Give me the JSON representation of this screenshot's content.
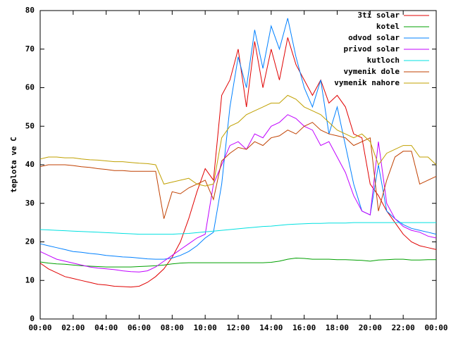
{
  "chart_data": {
    "type": "line",
    "y_label": "teplota ve C",
    "x": [
      0,
      0.5,
      1,
      1.5,
      2,
      2.5,
      3,
      3.5,
      4,
      4.5,
      5,
      5.5,
      6,
      6.5,
      7,
      7.5,
      8,
      8.5,
      9,
      9.5,
      10,
      10.5,
      11,
      11.5,
      12,
      12.5,
      13,
      13.5,
      14,
      14.5,
      15,
      15.5,
      16,
      16.5,
      17,
      17.5,
      18,
      18.5,
      19,
      19.5,
      20,
      20.5,
      21,
      21.5,
      22,
      22.5,
      23,
      23.5,
      24
    ],
    "xlim": [
      0,
      24
    ],
    "xticks": [
      {
        "value": 0,
        "label": "00:00"
      },
      {
        "value": 2,
        "label": "02:00"
      },
      {
        "value": 4,
        "label": "04:00"
      },
      {
        "value": 6,
        "label": "06:00"
      },
      {
        "value": 8,
        "label": "08:00"
      },
      {
        "value": 10,
        "label": "10:00"
      },
      {
        "value": 12,
        "label": "12:00"
      },
      {
        "value": 14,
        "label": "14:00"
      },
      {
        "value": 16,
        "label": "16:00"
      },
      {
        "value": 18,
        "label": "18:00"
      },
      {
        "value": 20,
        "label": "20:00"
      },
      {
        "value": 22,
        "label": "22:00"
      },
      {
        "value": 24,
        "label": "00:00"
      }
    ],
    "ylim": [
      0,
      80
    ],
    "yticks": [
      0,
      10,
      20,
      30,
      40,
      50,
      60,
      70,
      80
    ],
    "legend": "top-right",
    "series": [
      {
        "name": "3ti solar",
        "color": "#e00000",
        "values": [
          14.5,
          13,
          12,
          11,
          10.5,
          10,
          9.5,
          9,
          8.8,
          8.5,
          8.4,
          8.3,
          8.5,
          9.5,
          11,
          13,
          16,
          20,
          26,
          33,
          39,
          36,
          58,
          62,
          70,
          55,
          72,
          60,
          70,
          62,
          73,
          66,
          62,
          58,
          62,
          56,
          58,
          55,
          48,
          47,
          35,
          32,
          28,
          25,
          22,
          20,
          19,
          18.5,
          18
        ]
      },
      {
        "name": "kotel",
        "color": "#00a000",
        "values": [
          14.8,
          14.5,
          14.3,
          14.2,
          14,
          13.8,
          13.7,
          13.6,
          13.5,
          13.5,
          13.5,
          13.5,
          13.6,
          13.7,
          13.8,
          14,
          14.3,
          14.5,
          14.6,
          14.6,
          14.6,
          14.6,
          14.6,
          14.6,
          14.6,
          14.6,
          14.6,
          14.6,
          14.7,
          15,
          15.5,
          15.8,
          15.7,
          15.5,
          15.5,
          15.5,
          15.4,
          15.4,
          15.3,
          15.2,
          15,
          15.3,
          15.4,
          15.5,
          15.5,
          15.3,
          15.3,
          15.4,
          15.4
        ]
      },
      {
        "name": "odvod solar",
        "color": "#0080ff",
        "values": [
          19.5,
          19,
          18.5,
          18,
          17.5,
          17.3,
          17,
          16.8,
          16.5,
          16.3,
          16.1,
          16,
          15.8,
          15.6,
          15.5,
          15.5,
          15.8,
          16.5,
          17.5,
          19,
          21,
          22.5,
          35,
          55,
          68,
          60,
          75,
          65,
          76,
          70,
          78,
          68,
          60,
          55,
          62,
          48,
          55,
          45,
          35,
          28,
          27,
          40,
          28,
          26,
          24.5,
          23.5,
          23,
          22.5,
          22
        ]
      },
      {
        "name": "privod solar",
        "color": "#c000ff",
        "values": [
          17.5,
          16.5,
          15.5,
          15,
          14.5,
          14,
          13.5,
          13.2,
          13,
          12.8,
          12.5,
          12.3,
          12.2,
          12.5,
          13.5,
          15,
          16.5,
          18,
          19.5,
          21,
          22,
          35,
          40,
          45,
          46,
          44,
          48,
          47,
          50,
          51,
          53,
          52,
          50,
          49,
          45,
          46,
          42,
          38,
          32,
          28,
          27,
          46,
          30,
          26,
          24,
          23,
          22.5,
          21.5,
          21
        ]
      },
      {
        "name": "kutloch",
        "color": "#00e0e0",
        "values": [
          23.2,
          23.1,
          23,
          22.9,
          22.8,
          22.7,
          22.6,
          22.5,
          22.4,
          22.3,
          22.2,
          22.1,
          22,
          22,
          22,
          22,
          22,
          22.1,
          22.2,
          22.4,
          22.6,
          22.8,
          23,
          23.2,
          23.4,
          23.6,
          23.8,
          24,
          24.1,
          24.3,
          24.5,
          24.6,
          24.7,
          24.8,
          24.8,
          24.9,
          24.9,
          24.9,
          25,
          25,
          25,
          25,
          25,
          25,
          25,
          25,
          25,
          25,
          25
        ]
      },
      {
        "name": "vymenik dole",
        "color": "#c04000",
        "values": [
          39.5,
          40,
          40,
          40,
          39.8,
          39.5,
          39.3,
          39,
          38.8,
          38.5,
          38.5,
          38.3,
          38.3,
          38.3,
          38.3,
          26,
          33,
          32.5,
          34,
          35,
          36,
          31,
          41,
          43,
          44.5,
          44,
          46,
          45,
          47,
          47.5,
          49,
          48,
          50,
          51,
          49,
          48,
          47.5,
          47,
          45,
          46,
          47,
          28,
          36,
          42,
          43.5,
          43.5,
          35,
          36,
          37
        ]
      },
      {
        "name": "vymenik nahore",
        "color": "#c0a000",
        "values": [
          41.5,
          42,
          42,
          41.8,
          41.8,
          41.5,
          41.3,
          41.2,
          41,
          40.8,
          40.8,
          40.6,
          40.4,
          40.3,
          40,
          35,
          35.5,
          36,
          36.5,
          35,
          34.5,
          35,
          47,
          50,
          51,
          53,
          54,
          55,
          56,
          56,
          58,
          57,
          55,
          54,
          53,
          51,
          49,
          48,
          47,
          48,
          46,
          40,
          43,
          44,
          45,
          45,
          42,
          42,
          40
        ]
      }
    ]
  }
}
